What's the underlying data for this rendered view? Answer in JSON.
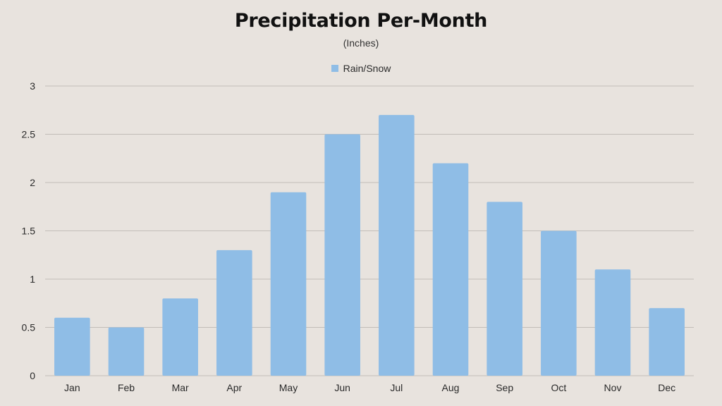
{
  "chart_data": {
    "type": "bar",
    "title": "Precipitation Per-Month",
    "subtitle": "(Inches)",
    "categories": [
      "Jan",
      "Feb",
      "Mar",
      "Apr",
      "May",
      "Jun",
      "Jul",
      "Aug",
      "Sep",
      "Oct",
      "Nov",
      "Dec"
    ],
    "series": [
      {
        "name": "Rain/Snow",
        "values": [
          0.6,
          0.5,
          0.8,
          1.3,
          1.9,
          2.5,
          2.7,
          2.2,
          1.8,
          1.5,
          1.1,
          0.7
        ]
      }
    ],
    "ylim": [
      0,
      3
    ],
    "yticks": [
      "0",
      "0.5",
      "1",
      "1.5",
      "2",
      "2.5",
      "3"
    ],
    "grid": true,
    "legend_position": "top-center",
    "colors": {
      "bar": "#8fbde6",
      "grid": "#c2bdb8",
      "background": "#e8e3de"
    }
  }
}
